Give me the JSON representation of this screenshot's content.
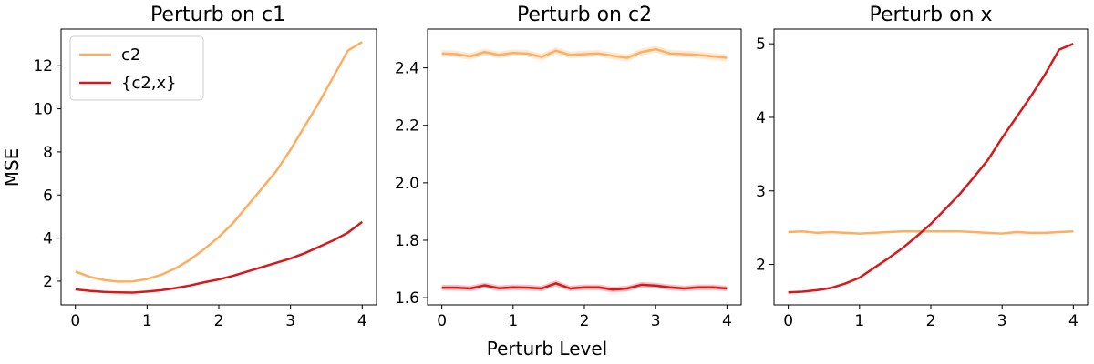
{
  "figure": {
    "shared_xlabel": "Perturb Level"
  },
  "colors": {
    "c2": "#fdae61",
    "c2x": "#d7191c"
  },
  "chart_data": [
    {
      "type": "line",
      "title": "Perturb on c1",
      "xlabel": "",
      "ylabel": "MSE",
      "xlim": [
        -0.2,
        4.2
      ],
      "ylim": [
        0.9,
        13.7
      ],
      "xticks": [
        0,
        1,
        2,
        3,
        4
      ],
      "yticks": [
        2,
        4,
        6,
        8,
        10,
        12
      ],
      "legend": {
        "position": "top-left",
        "entries": [
          "c2",
          "{c2,x}"
        ]
      },
      "grid": false,
      "x": [
        0,
        0.2,
        0.4,
        0.6,
        0.8,
        1.0,
        1.2,
        1.4,
        1.6,
        1.8,
        2.0,
        2.2,
        2.4,
        2.6,
        2.8,
        3.0,
        3.2,
        3.4,
        3.6,
        3.8,
        4.0
      ],
      "series": [
        {
          "name": "c2",
          "color": "#fdae61",
          "values": [
            2.45,
            2.2,
            2.05,
            1.98,
            1.99,
            2.1,
            2.3,
            2.6,
            3.0,
            3.5,
            4.05,
            4.7,
            5.5,
            6.3,
            7.1,
            8.1,
            9.2,
            10.3,
            11.5,
            12.7,
            13.1
          ]
        },
        {
          "name": "{c2,x}",
          "color": "#d7191c",
          "values": [
            1.62,
            1.55,
            1.5,
            1.48,
            1.47,
            1.52,
            1.58,
            1.68,
            1.8,
            1.95,
            2.08,
            2.25,
            2.45,
            2.65,
            2.85,
            3.05,
            3.3,
            3.6,
            3.9,
            4.25,
            4.75
          ]
        }
      ]
    },
    {
      "type": "line",
      "title": "Perturb on c2",
      "xlabel": "",
      "ylabel": "",
      "xlim": [
        -0.2,
        4.2
      ],
      "ylim": [
        1.575,
        2.535
      ],
      "xticks": [
        0,
        1,
        2,
        3,
        4
      ],
      "yticks": [
        1.6,
        1.8,
        2.0,
        2.2,
        2.4
      ],
      "grid": false,
      "x": [
        0,
        0.2,
        0.4,
        0.6,
        0.8,
        1.0,
        1.2,
        1.4,
        1.6,
        1.8,
        2.0,
        2.2,
        2.4,
        2.6,
        2.8,
        3.0,
        3.2,
        3.4,
        3.6,
        3.8,
        4.0
      ],
      "series": [
        {
          "name": "",
          "color": "#fdae61",
          "band": 0.012,
          "values": [
            2.45,
            2.448,
            2.44,
            2.455,
            2.445,
            2.452,
            2.45,
            2.438,
            2.46,
            2.445,
            2.448,
            2.45,
            2.442,
            2.435,
            2.455,
            2.465,
            2.45,
            2.448,
            2.445,
            2.44,
            2.435
          ]
        },
        {
          "name": "",
          "color": "#d7191c",
          "band": 0.01,
          "values": [
            1.635,
            1.635,
            1.632,
            1.643,
            1.633,
            1.636,
            1.635,
            1.632,
            1.65,
            1.632,
            1.636,
            1.636,
            1.628,
            1.632,
            1.645,
            1.642,
            1.636,
            1.632,
            1.636,
            1.636,
            1.632
          ]
        }
      ]
    },
    {
      "type": "line",
      "title": "Perturb on x",
      "xlabel": "",
      "ylabel": "",
      "xlim": [
        -0.2,
        4.2
      ],
      "ylim": [
        1.45,
        5.2
      ],
      "xticks": [
        0,
        1,
        2,
        3,
        4
      ],
      "yticks": [
        2,
        3,
        4,
        5
      ],
      "grid": false,
      "x": [
        0,
        0.2,
        0.4,
        0.6,
        0.8,
        1.0,
        1.2,
        1.4,
        1.6,
        1.8,
        2.0,
        2.2,
        2.4,
        2.6,
        2.8,
        3.0,
        3.2,
        3.4,
        3.6,
        3.8,
        4.0
      ],
      "series": [
        {
          "name": "",
          "color": "#fdae61",
          "values": [
            2.44,
            2.45,
            2.43,
            2.44,
            2.43,
            2.42,
            2.43,
            2.44,
            2.45,
            2.45,
            2.45,
            2.45,
            2.45,
            2.44,
            2.43,
            2.42,
            2.44,
            2.43,
            2.43,
            2.44,
            2.45
          ]
        },
        {
          "name": "",
          "color": "#d7191c",
          "values": [
            1.62,
            1.63,
            1.65,
            1.68,
            1.74,
            1.82,
            1.95,
            2.08,
            2.22,
            2.38,
            2.55,
            2.75,
            2.95,
            3.18,
            3.42,
            3.72,
            4.0,
            4.28,
            4.58,
            4.92,
            5.0
          ]
        }
      ]
    }
  ]
}
